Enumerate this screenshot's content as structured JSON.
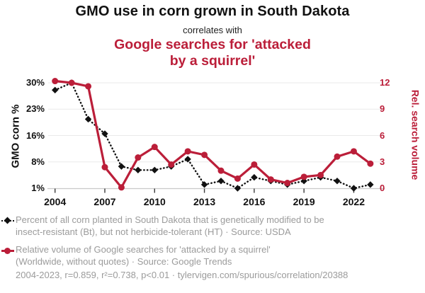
{
  "header": {
    "title_top": "GMO use in corn grown in South Dakota",
    "connector": "correlates with",
    "title_bottom": "Google searches for 'attacked\nby a squirrel'"
  },
  "colors": {
    "accent_red": "#bb1e39",
    "series_black": "#111111",
    "legend_gray": "#9b9b9b",
    "gridline": "#eaeaea",
    "axis_line": "#c9c9c9"
  },
  "chart_data": {
    "type": "line",
    "x": [
      2004,
      2005,
      2006,
      2007,
      2008,
      2009,
      2010,
      2011,
      2012,
      2013,
      2014,
      2015,
      2016,
      2017,
      2018,
      2019,
      2020,
      2021,
      2022,
      2023
    ],
    "x_tick_labels": [
      "2004",
      "2007",
      "2010",
      "2013",
      "2016",
      "2019",
      "2022"
    ],
    "series": [
      {
        "name": "Percent of all corn planted in South Dakota that is genetically modified to be insect-resistant (Bt), but not herbicide-tolerant (HT)",
        "short_name": "GMO corn %",
        "axis": "left",
        "color": "#111111",
        "line_style": "dotted",
        "marker": "diamond",
        "values": [
          28,
          30,
          20,
          16,
          7,
          6,
          6,
          7,
          9,
          2,
          3,
          1,
          4,
          3,
          2,
          3,
          4,
          3,
          1,
          2
        ]
      },
      {
        "name": "Relative volume of Google searches for 'attacked by a squirrel'",
        "short_name": "Rel. search volume",
        "axis": "right",
        "color": "#bb1e39",
        "line_style": "solid",
        "marker": "circle",
        "values": [
          12.2,
          12,
          11.6,
          2.4,
          0.1,
          3.5,
          4.7,
          2.7,
          4.2,
          3.8,
          2,
          1.1,
          2.7,
          1,
          0.6,
          1.3,
          1.5,
          3.6,
          4.2,
          2.8
        ]
      }
    ],
    "left_axis": {
      "title": "GMO corn %",
      "tick_labels": [
        "30%",
        "23%",
        "16%",
        "8%",
        "1%"
      ],
      "range": [
        1,
        30
      ]
    },
    "right_axis": {
      "title": "Rel. search volume",
      "tick_labels": [
        "12",
        "9",
        "6",
        "3",
        "0"
      ],
      "range": [
        0,
        12
      ]
    },
    "grid": true,
    "legend_position": "bottom"
  },
  "legend": {
    "entries": [
      {
        "label": "Percent of all corn planted in South Dakota that is genetically modified to be\ninsect-resistant (Bt), but not herbicide-tolerant (HT) · Source: USDA"
      },
      {
        "label": "Relative volume of Google searches for 'attacked by a squirrel'\n(Worldwide, without quotes) · Source: Google Trends"
      }
    ]
  },
  "footer": {
    "stats": "2004-2023, r=0.859, r²=0.738, p<0.01 · tylervigen.com/spurious/correlation/20388"
  }
}
